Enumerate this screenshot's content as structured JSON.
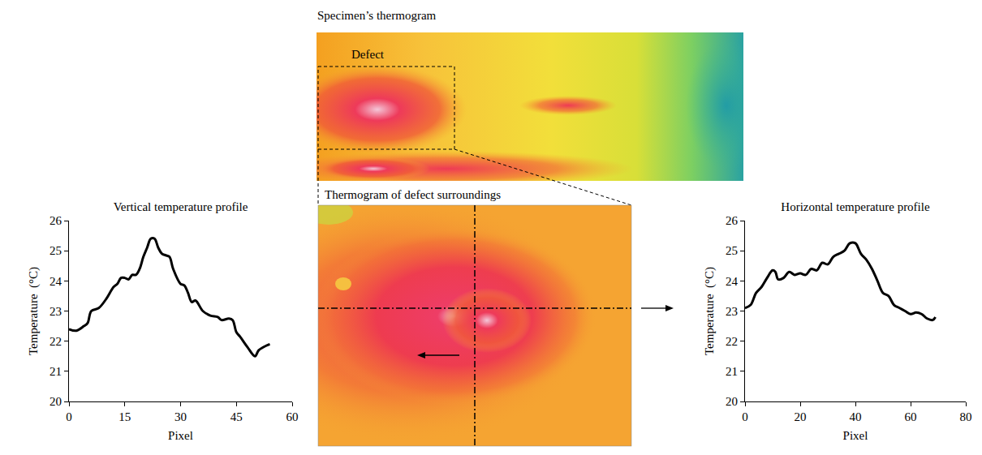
{
  "chart_data": [
    {
      "type": "line",
      "title": "Vertical temperature profile",
      "x_label": "Pixel",
      "y_label": "Temperature  (°C)",
      "x": [
        0,
        2,
        4,
        5,
        6,
        8,
        10,
        12,
        13,
        14,
        15,
        16,
        17,
        18,
        19,
        20,
        21,
        22,
        23,
        24,
        25,
        26,
        27,
        28,
        30,
        31,
        32,
        33,
        34,
        36,
        38,
        40,
        41,
        43,
        44,
        45,
        46,
        48,
        50,
        51,
        53,
        54
      ],
      "values": [
        22.4,
        22.35,
        22.5,
        22.6,
        23.0,
        23.1,
        23.4,
        23.8,
        23.9,
        24.1,
        24.1,
        24.05,
        24.2,
        24.2,
        24.4,
        24.8,
        25.1,
        25.4,
        25.4,
        25.1,
        24.9,
        24.85,
        24.8,
        24.4,
        23.9,
        23.85,
        23.6,
        23.3,
        23.35,
        23.0,
        22.85,
        22.8,
        22.7,
        22.75,
        22.7,
        22.3,
        22.15,
        21.8,
        21.5,
        21.7,
        21.85,
        21.9
      ],
      "color": "#000000",
      "line_style": "solid",
      "grid": false,
      "xlim": [
        0,
        60
      ],
      "xticks": [
        0,
        15,
        30,
        45,
        60
      ],
      "ylim": [
        20,
        26
      ],
      "yticks": [
        20,
        21,
        22,
        23,
        24,
        25,
        26
      ]
    },
    {
      "type": "line",
      "title": "Horizontal temperature profile",
      "x_label": "Pixel",
      "y_label": "Temperature  (°C)",
      "x": [
        0,
        2,
        4,
        6,
        8,
        10,
        11,
        12,
        14,
        16,
        18,
        20,
        22,
        24,
        26,
        28,
        30,
        32,
        34,
        36,
        38,
        40,
        42,
        44,
        46,
        48,
        50,
        52,
        54,
        56,
        58,
        60,
        62,
        64,
        66,
        68,
        69
      ],
      "values": [
        23.1,
        23.2,
        23.6,
        23.8,
        24.1,
        24.35,
        24.3,
        24.05,
        24.1,
        24.3,
        24.2,
        24.25,
        24.2,
        24.4,
        24.35,
        24.6,
        24.55,
        24.8,
        24.9,
        25.0,
        25.25,
        25.25,
        24.9,
        24.7,
        24.4,
        24.0,
        23.6,
        23.5,
        23.2,
        23.1,
        23.0,
        22.9,
        22.95,
        22.9,
        22.75,
        22.7,
        22.8
      ],
      "color": "#000000",
      "line_style": "solid",
      "grid": false,
      "xlim": [
        0,
        80
      ],
      "xticks": [
        0,
        20,
        40,
        60,
        80
      ],
      "ylim": [
        20,
        26
      ],
      "yticks": [
        20,
        21,
        22,
        23,
        24,
        25,
        26
      ]
    }
  ],
  "images": {
    "specimen": {
      "title": "Specimen’s thermogram",
      "region_label": "Defect"
    },
    "surroundings": {
      "title": "Thermogram  of defect surroundings"
    }
  }
}
